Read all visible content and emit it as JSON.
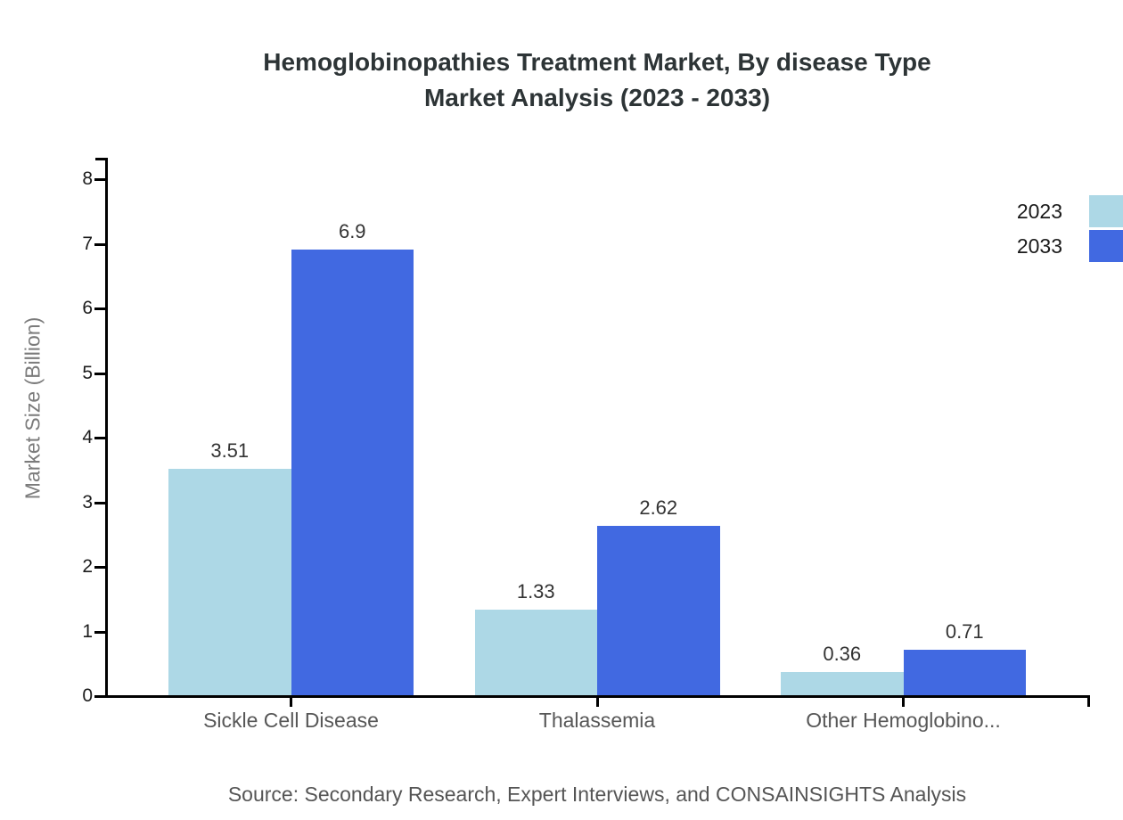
{
  "title": {
    "line1": "Hemoglobinopathies Treatment Market, By disease Type",
    "line2": "Market Analysis (2023 - 2033)"
  },
  "source": "Source: Secondary Research, Expert Interviews, and CONSAINSIGHTS Analysis",
  "chart_data": {
    "type": "bar",
    "title": "Hemoglobinopathies Treatment Market, By disease Type Market Analysis (2023 - 2033)",
    "categories": [
      "Sickle Cell Disease",
      "Thalassemia",
      "Other Hemoglobino..."
    ],
    "series": [
      {
        "name": "2023",
        "color": "#add8e6",
        "values": [
          3.51,
          1.33,
          0.36
        ]
      },
      {
        "name": "2033",
        "color": "#4169e1",
        "values": [
          6.9,
          2.62,
          0.71
        ]
      }
    ],
    "value_labels": [
      "3.51",
      "6.9",
      "1.33",
      "2.62",
      "0.36",
      "0.71"
    ],
    "xlabel": "",
    "ylabel": "Market Size (Billion)",
    "ylim": [
      0,
      8
    ],
    "yticks": [
      0,
      1,
      2,
      3,
      4,
      5,
      6,
      7,
      8
    ],
    "grid": false,
    "legend_position": "top-right"
  },
  "colors": {
    "series_2023": "#add8e6",
    "series_2033": "#4169e1",
    "axis": "#000000",
    "title_text": "#2d3436",
    "value_text": "#333333",
    "category_text": "#575757",
    "ylabel_text": "#7b7b7b"
  }
}
